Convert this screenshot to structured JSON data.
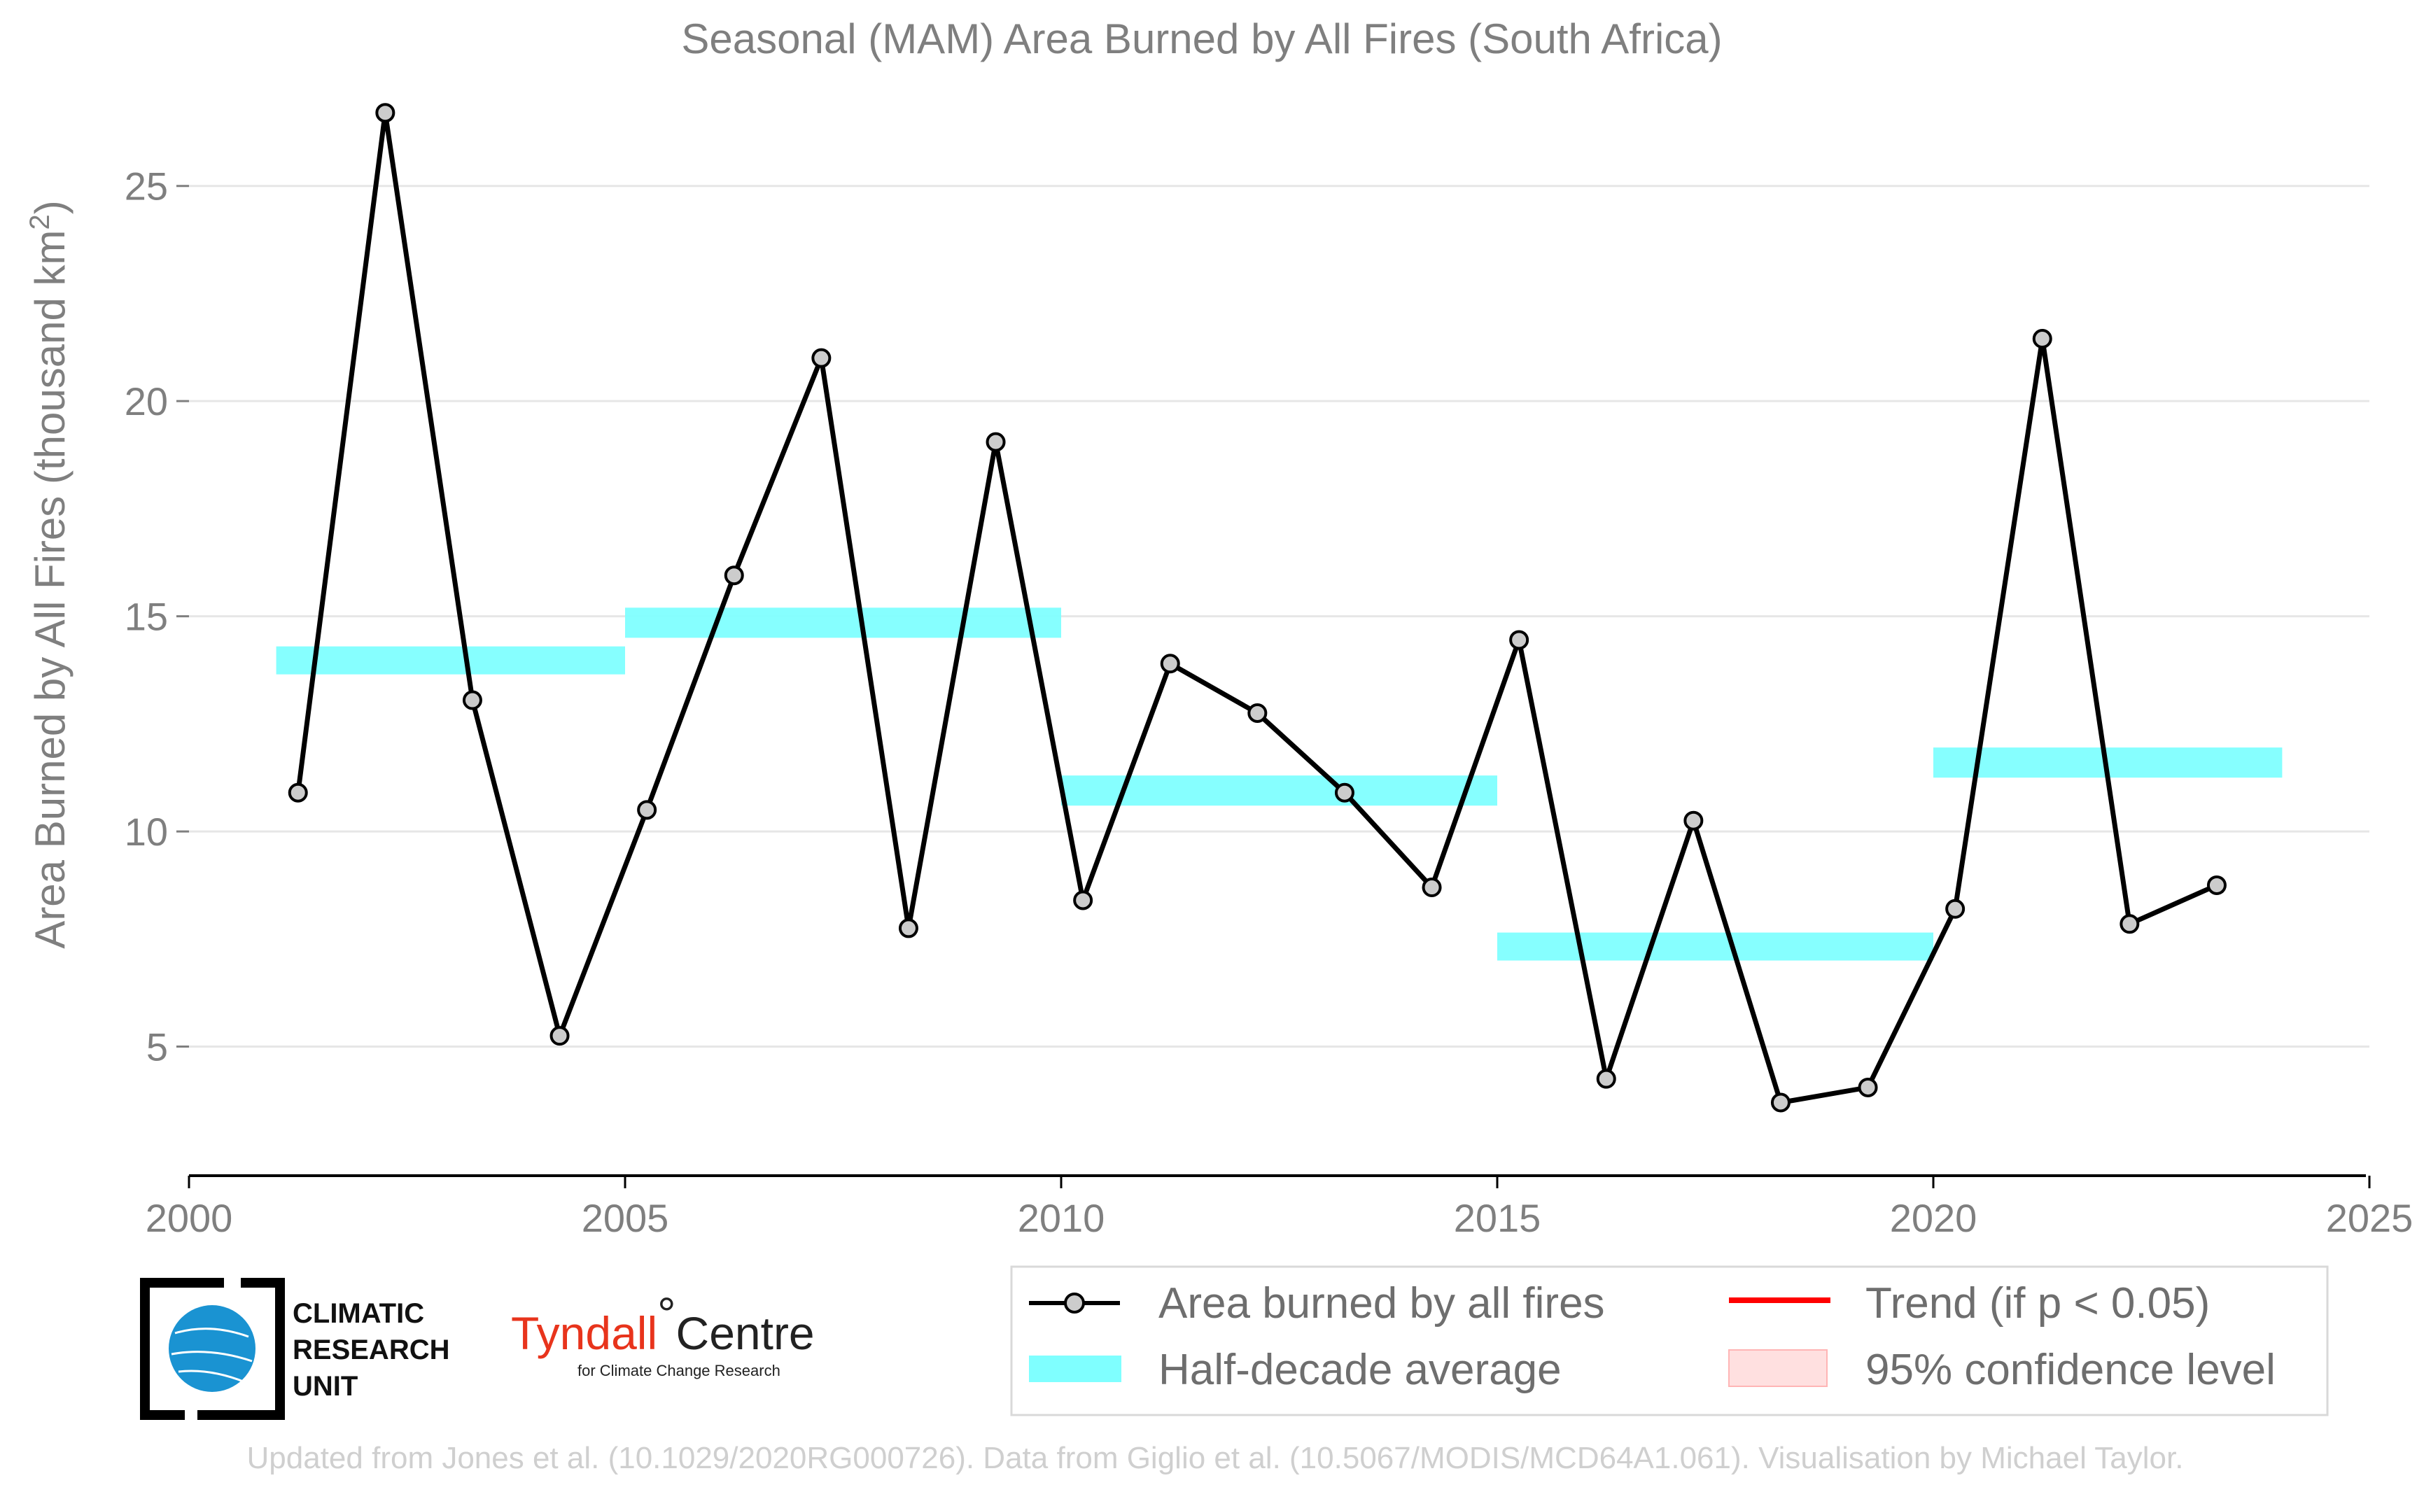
{
  "chart_data": {
    "type": "line",
    "title": "Seasonal (MAM) Area Burned by All Fires (South Africa)",
    "ylabel": "Area Burned by All Fires (thousand km",
    "ylabel_sup": "2",
    "ylabel_end": ")",
    "xlim": [
      2000,
      2025
    ],
    "ylim": [
      2,
      27.5
    ],
    "x_ticks": [
      2000,
      2005,
      2010,
      2015,
      2020,
      2025
    ],
    "y_ticks": [
      5,
      10,
      15,
      20,
      25
    ],
    "grid": "horizontal",
    "legend_position": "bottom-right",
    "series": [
      {
        "name": "Area burned by all fires",
        "type": "line",
        "color": "#000000",
        "marker_fill": "#cccccc",
        "x": [
          2001.25,
          2002.25,
          2003.25,
          2004.25,
          2005.25,
          2006.25,
          2007.25,
          2008.25,
          2009.25,
          2010.25,
          2011.25,
          2012.25,
          2013.25,
          2014.25,
          2015.25,
          2016.25,
          2017.25,
          2018.25,
          2019.25,
          2020.25,
          2021.25,
          2022.25,
          2023.25
        ],
        "y": [
          10.9,
          26.7,
          13.05,
          5.25,
          10.5,
          15.95,
          21.0,
          7.75,
          19.05,
          8.4,
          13.9,
          12.75,
          10.9,
          8.7,
          14.45,
          4.25,
          10.25,
          3.7,
          4.05,
          8.2,
          21.45,
          7.85,
          8.75
        ]
      },
      {
        "name": "Half-decade average",
        "type": "band",
        "color": "#7fffff",
        "segments": [
          {
            "x": [
              2001,
              2005
            ],
            "y": [
              13.65,
              14.3
            ]
          },
          {
            "x": [
              2005,
              2010
            ],
            "y": [
              14.5,
              15.2
            ]
          },
          {
            "x": [
              2010,
              2015
            ],
            "y": [
              10.6,
              11.3
            ]
          },
          {
            "x": [
              2015,
              2020
            ],
            "y": [
              7.0,
              7.65
            ]
          },
          {
            "x": [
              2020,
              2024
            ],
            "y": [
              11.25,
              11.95
            ]
          }
        ]
      }
    ],
    "legend": [
      {
        "label": "Area burned by all fires",
        "symbol": "line-marker",
        "color": "#000000"
      },
      {
        "label": "Trend (if p < 0.05)",
        "symbol": "line",
        "color": "#ff0000"
      },
      {
        "label": "Half-decade average",
        "symbol": "band",
        "color": "#7fffff"
      },
      {
        "label": "95% confidence level",
        "symbol": "band",
        "color": "#ffe0e0"
      }
    ]
  },
  "logos": {
    "cru_line1": "CLIMATIC",
    "cru_line2": "RESEARCH",
    "cru_line3": "UNIT",
    "tyndall_a": "Tyndall",
    "tyndall_deg": "°",
    "tyndall_b": "Centre",
    "tyndall_sub": "for Climate Change Research"
  },
  "credit": "Updated from Jones et al. (10.1029/2020RG000726). Data from Giglio et al. (10.5067/MODIS/MCD64A1.061). Visualisation by Michael Taylor."
}
